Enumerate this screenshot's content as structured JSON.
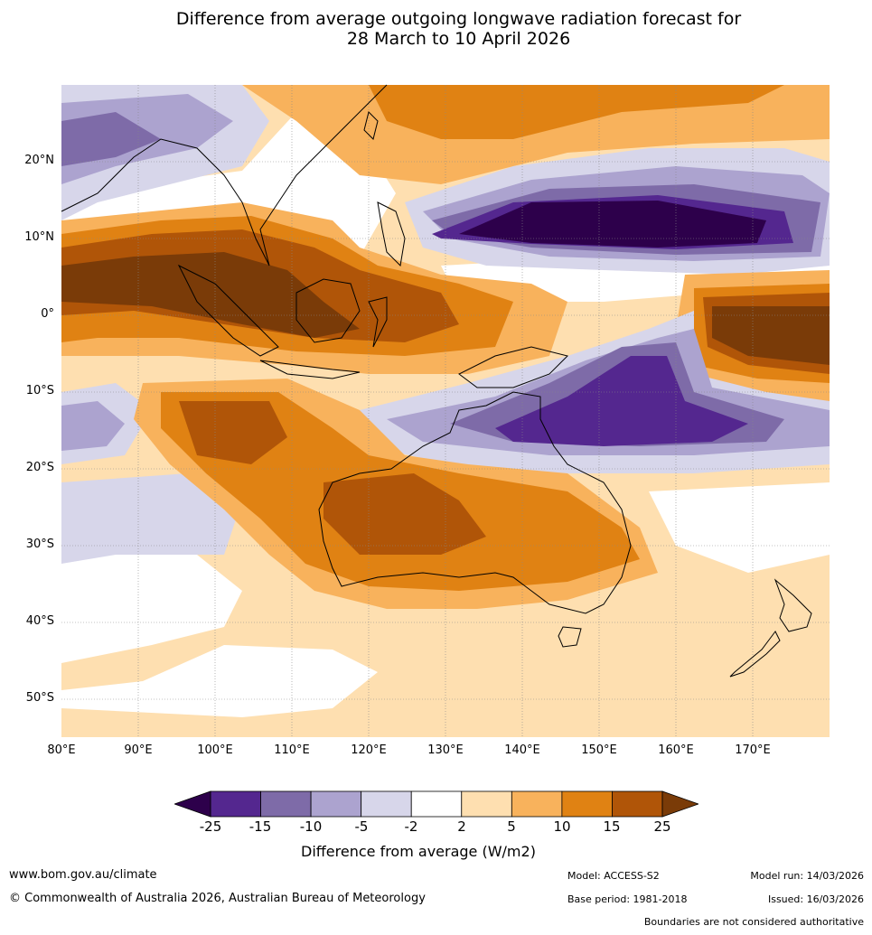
{
  "title": {
    "line1": "Difference from average outgoing longwave radiation forecast for",
    "line2": "28 March to 10 April 2026"
  },
  "map": {
    "lat_labels": [
      "20°N",
      "10°N",
      "0°",
      "10°S",
      "20°S",
      "30°S",
      "40°S",
      "50°S"
    ],
    "lon_labels": [
      "80°E",
      "90°E",
      "100°E",
      "110°E",
      "120°E",
      "130°E",
      "140°E",
      "150°E",
      "160°E",
      "170°E"
    ],
    "lat_range": [
      -55,
      30
    ],
    "lon_range": [
      80,
      180
    ]
  },
  "colorbar": {
    "ticks": [
      "-25",
      "-15",
      "-10",
      "-5",
      "-2",
      "2",
      "5",
      "10",
      "15",
      "25"
    ],
    "colors": [
      "#54278f",
      "#7e6ba8",
      "#aca3cf",
      "#d7d6ea",
      "#ffffff",
      "#fedfb0",
      "#f8b25c",
      "#e08213",
      "#b05508"
    ],
    "low_extend_color": "#2d004b",
    "high_extend_color": "#7a3b08",
    "label": "Difference from average (W/m2)"
  },
  "footer": {
    "website": "www.bom.gov.au/climate",
    "copyright": "© Commonwealth of Australia 2026, Australian Bureau of Meteorology",
    "model": "Model: ACCESS-S2",
    "base_period": "Base period: 1981-2018",
    "model_run": "Model run: 14/03/2026",
    "issued": "Issued: 16/03/2026",
    "disclaimer": "Boundaries are not considered authoritative"
  }
}
